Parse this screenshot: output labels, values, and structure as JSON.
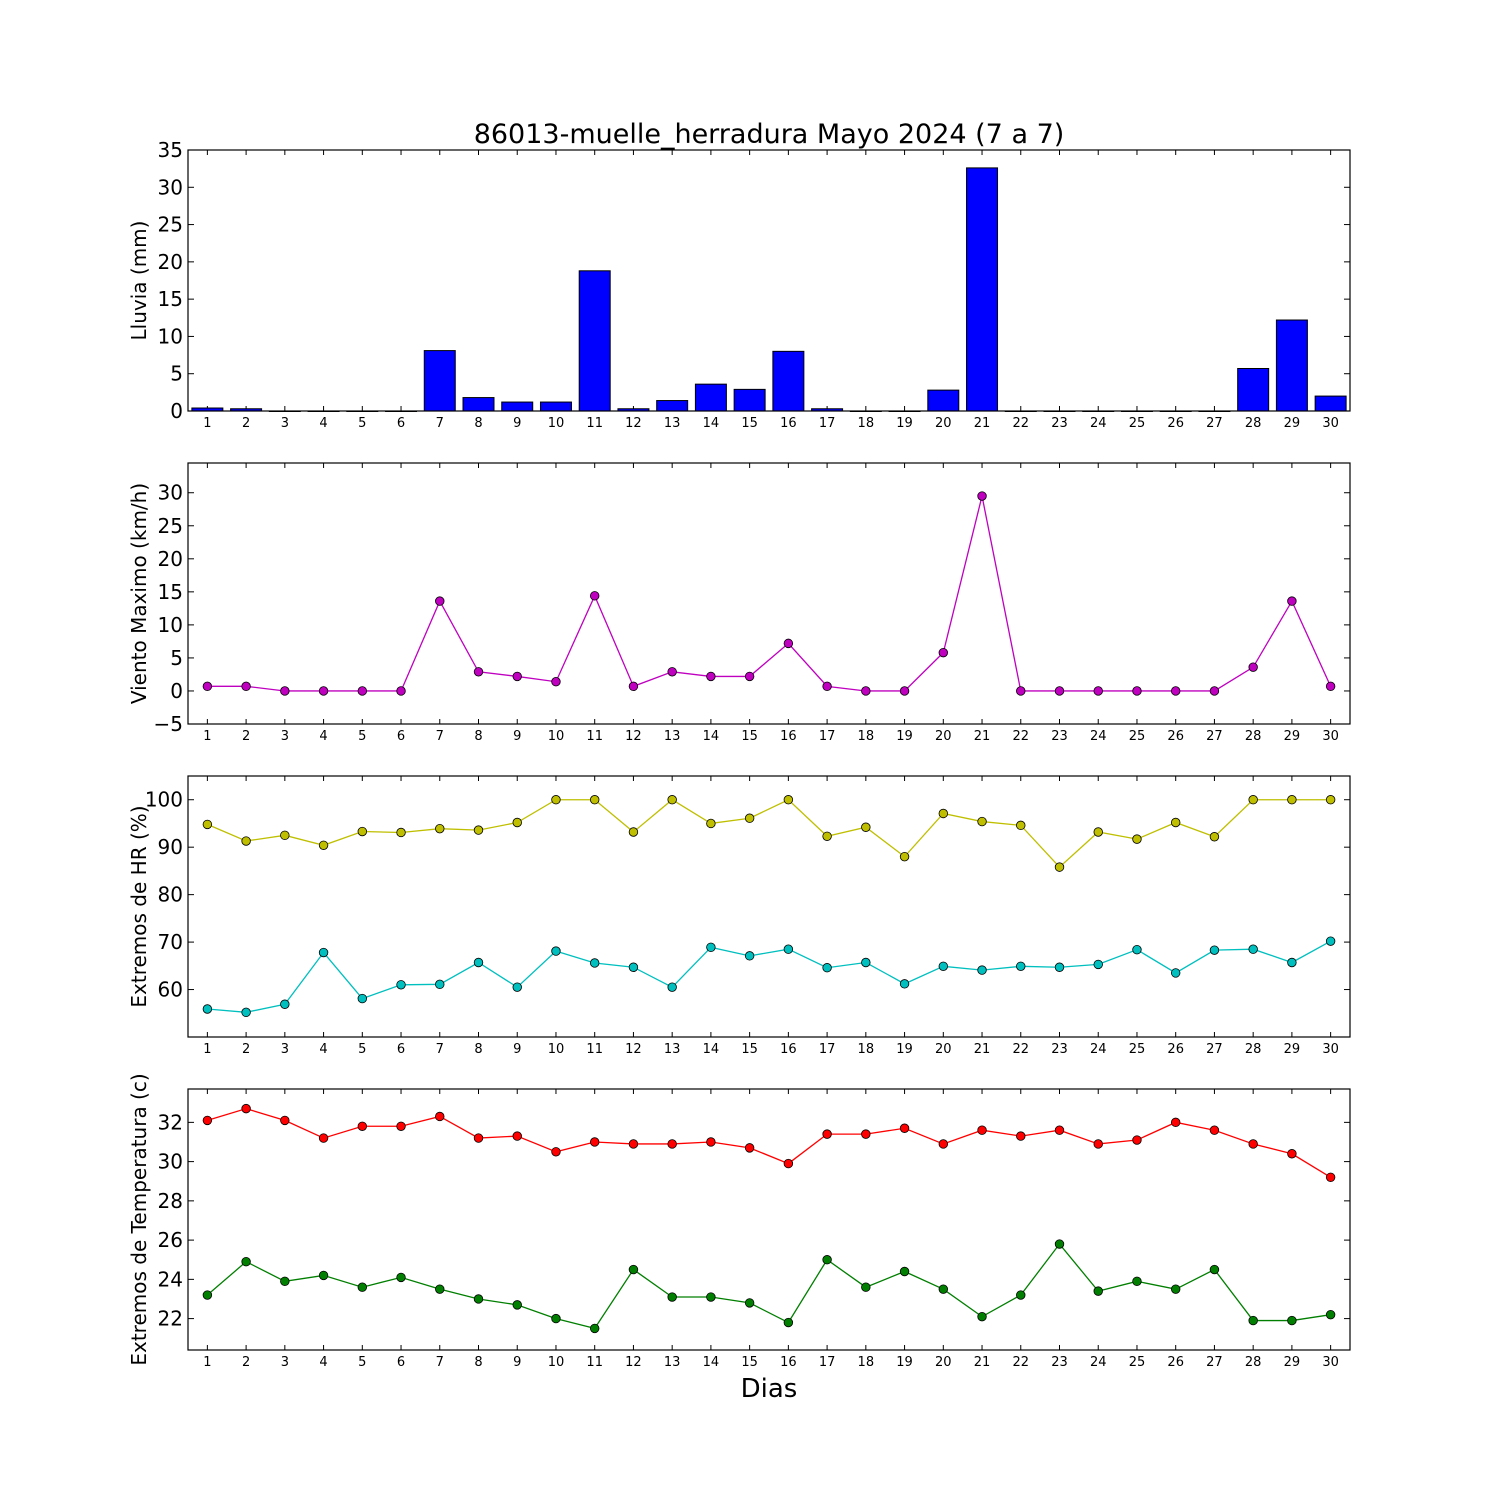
{
  "figure": {
    "title": "86013-muelle_herradura Mayo 2024  (7 a 7)",
    "xlabel": "Dias"
  },
  "chart_data": [
    {
      "type": "bar",
      "ylabel": "Lluvia (mm)",
      "ylim": [
        0,
        35
      ],
      "yticks": [
        0,
        5,
        10,
        15,
        20,
        25,
        30,
        35
      ],
      "categories": [
        1,
        2,
        3,
        4,
        5,
        6,
        7,
        8,
        9,
        10,
        11,
        12,
        13,
        14,
        15,
        16,
        17,
        18,
        19,
        20,
        21,
        22,
        23,
        24,
        25,
        26,
        27,
        28,
        29,
        30
      ],
      "series": [
        {
          "color": "#0000ff",
          "values": [
            0.4,
            0.3,
            0,
            0,
            0,
            0,
            8.1,
            1.8,
            1.2,
            1.2,
            18.8,
            0.3,
            1.4,
            3.6,
            2.9,
            8.0,
            0.3,
            0,
            0,
            2.8,
            32.6,
            0,
            0,
            0,
            0,
            0,
            0,
            5.7,
            12.2,
            2.0
          ]
        }
      ]
    },
    {
      "type": "line",
      "ylabel": "Viento Maximo (km/h)",
      "ylim": [
        -5,
        34.5
      ],
      "yticks": [
        -5,
        0,
        5,
        10,
        15,
        20,
        25,
        30
      ],
      "categories": [
        1,
        2,
        3,
        4,
        5,
        6,
        7,
        8,
        9,
        10,
        11,
        12,
        13,
        14,
        15,
        16,
        17,
        18,
        19,
        20,
        21,
        22,
        23,
        24,
        25,
        26,
        27,
        28,
        29,
        30
      ],
      "series": [
        {
          "color": "#bf00bf",
          "values": [
            0.7,
            0.7,
            0,
            0,
            0,
            0,
            13.6,
            2.9,
            2.2,
            1.4,
            14.4,
            0.7,
            2.9,
            2.2,
            2.2,
            7.2,
            0.7,
            0,
            0,
            5.8,
            29.5,
            0,
            0,
            0,
            0,
            0,
            0,
            3.6,
            13.6,
            0.7
          ]
        }
      ]
    },
    {
      "type": "line",
      "ylabel": "Extremos de HR (%)",
      "ylim": [
        50,
        105
      ],
      "yticks": [
        60,
        70,
        80,
        90,
        100
      ],
      "categories": [
        1,
        2,
        3,
        4,
        5,
        6,
        7,
        8,
        9,
        10,
        11,
        12,
        13,
        14,
        15,
        16,
        17,
        18,
        19,
        20,
        21,
        22,
        23,
        24,
        25,
        26,
        27,
        28,
        29,
        30
      ],
      "series": [
        {
          "color": "#bfbf00",
          "values": [
            94.8,
            91.3,
            92.5,
            90.4,
            93.3,
            93.1,
            93.9,
            93.6,
            95.2,
            100,
            100,
            93.2,
            100,
            95,
            96.1,
            100,
            92.3,
            94.2,
            88,
            97.1,
            95.4,
            94.6,
            85.8,
            93.2,
            91.7,
            95.2,
            92.2,
            100,
            100,
            100
          ]
        },
        {
          "color": "#00bfbf",
          "values": [
            55.9,
            55.2,
            56.9,
            67.8,
            58.1,
            61,
            61.1,
            65.7,
            60.5,
            68.1,
            65.6,
            64.7,
            60.5,
            68.9,
            67.1,
            68.5,
            64.6,
            65.7,
            61.2,
            64.9,
            64.1,
            64.9,
            64.7,
            65.3,
            68.4,
            63.5,
            68.3,
            68.5,
            65.7,
            70.2
          ]
        }
      ]
    },
    {
      "type": "line",
      "ylabel": "Extremos de Temperatura (c)",
      "ylim": [
        20.4,
        33.7
      ],
      "yticks": [
        22,
        24,
        26,
        28,
        30,
        32
      ],
      "categories": [
        1,
        2,
        3,
        4,
        5,
        6,
        7,
        8,
        9,
        10,
        11,
        12,
        13,
        14,
        15,
        16,
        17,
        18,
        19,
        20,
        21,
        22,
        23,
        24,
        25,
        26,
        27,
        28,
        29,
        30
      ],
      "series": [
        {
          "color": "#ff0000",
          "values": [
            32.1,
            32.7,
            32.1,
            31.2,
            31.8,
            31.8,
            32.3,
            31.2,
            31.3,
            30.5,
            31,
            30.9,
            30.9,
            31,
            30.7,
            29.9,
            31.4,
            31.4,
            31.7,
            30.9,
            31.6,
            31.3,
            31.6,
            30.9,
            31.1,
            32,
            31.6,
            30.9,
            30.4,
            29.2
          ]
        },
        {
          "color": "#007f00",
          "values": [
            23.2,
            24.9,
            23.9,
            24.2,
            23.6,
            24.1,
            23.5,
            23,
            22.7,
            22,
            21.5,
            24.5,
            23.1,
            23.1,
            22.8,
            21.8,
            25,
            23.6,
            24.4,
            23.5,
            22.1,
            23.2,
            25.8,
            23.4,
            23.9,
            23.5,
            24.5,
            21.9,
            21.9,
            22.2
          ]
        }
      ]
    }
  ]
}
